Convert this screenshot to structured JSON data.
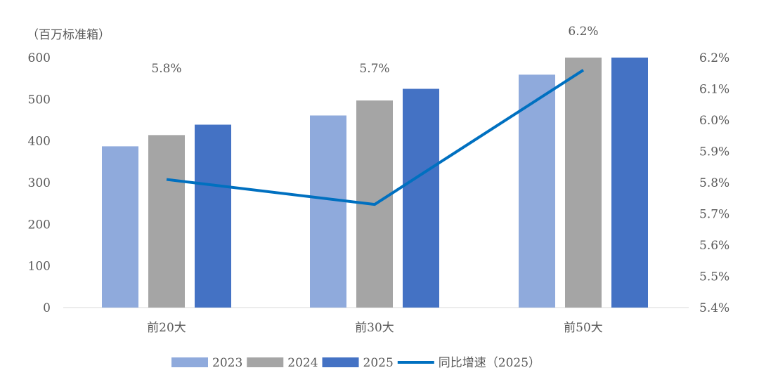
{
  "chart_data": {
    "type": "bar+line",
    "unit_label": "（百万标准箱）",
    "categories": [
      "前20大",
      "前30大",
      "前50大"
    ],
    "series": [
      {
        "name": "2023",
        "type": "bar",
        "axis": "left",
        "color": "#8FAADC",
        "values": [
          387,
          461,
          559
        ]
      },
      {
        "name": "2024",
        "type": "bar",
        "axis": "left",
        "color": "#A5A5A5",
        "values": [
          414,
          497,
          600
        ]
      },
      {
        "name": "2025",
        "type": "bar",
        "axis": "left",
        "color": "#4472C4",
        "values": [
          439,
          525,
          600
        ]
      },
      {
        "name": "同比增速（2025）",
        "type": "line",
        "axis": "right",
        "color": "#0070C0",
        "values": [
          5.81,
          5.73,
          6.16
        ],
        "labels": [
          "5.8%",
          "5.7%",
          "6.2%"
        ]
      }
    ],
    "left_axis": {
      "min": 0,
      "max": 600,
      "ticks": [
        "0",
        "100",
        "200",
        "300",
        "400",
        "500",
        "600"
      ]
    },
    "right_axis": {
      "min": 5.4,
      "max": 6.2,
      "ticks": [
        "5.4%",
        "5.5%",
        "5.6%",
        "5.7%",
        "5.8%",
        "5.9%",
        "6.0%",
        "6.1%",
        "6.2%"
      ]
    },
    "grid": false,
    "legend_position": "bottom"
  }
}
